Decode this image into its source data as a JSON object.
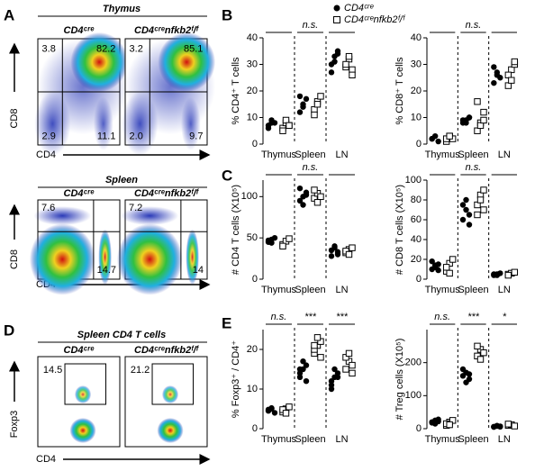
{
  "panel_labels": [
    "A",
    "B",
    "C",
    "D",
    "E"
  ],
  "flow_sections": [
    {
      "title": "Thymus",
      "headers": [
        "CD4ᶜʳᵉ",
        "CD4ᶜʳᵉnfkb2ᶠ/ᶠ"
      ],
      "y_axis": "CD8",
      "x_axis": "CD4",
      "gates": [
        [
          "3.8",
          "82.2",
          "2.9",
          "11.1"
        ],
        [
          "3.2",
          "85.1",
          "2.0",
          "9.7"
        ]
      ]
    },
    {
      "title": "Spleen",
      "headers": [
        "CD4ᶜʳᵉ",
        "CD4ᶜʳᵉnfkb2ᶠ/ᶠ"
      ],
      "y_axis": "CD8",
      "x_axis": "CD4",
      "gates": [
        [
          "7.6",
          "14.7"
        ],
        [
          "7.2",
          "14"
        ]
      ]
    },
    {
      "title": "Spleen CD4 T cells",
      "headers": [
        "CD4ᶜʳᵉ",
        "CD4ᶜʳᵉnfkb2ᶠ/ᶠ"
      ],
      "y_axis": "Foxp3",
      "x_axis": "CD4",
      "gates": [
        [
          "14.5"
        ],
        [
          "21.2"
        ]
      ]
    }
  ],
  "chart_data": [
    {
      "type": "dot",
      "ylabel": "% CD4⁺ T cells",
      "categories": [
        "Thymus",
        "Spleen",
        "LN"
      ],
      "ylim": [
        0,
        40
      ],
      "yticks": [
        0,
        10,
        20,
        30,
        40
      ],
      "significance": [
        null,
        "n.s.",
        null
      ],
      "series": [
        {
          "name": "CD4ᶜʳᵉ",
          "color": "#000000",
          "marker": "circle",
          "values": [
            [
              7,
              9,
              8,
              6,
              8
            ],
            [
              12,
              15,
              17,
              18,
              14
            ],
            [
              30,
              33,
              35,
              27,
              31,
              34
            ]
          ]
        },
        {
          "name": "CD4ᶜʳᵉnfkb2ᶠ/ᶠ",
          "color": "#000000",
          "marker": "square",
          "values": [
            [
              6,
              8,
              7,
              5,
              9,
              7
            ],
            [
              13,
              16,
              18,
              11,
              15
            ],
            [
              29,
              32,
              28,
              30,
              33,
              26
            ]
          ]
        }
      ]
    },
    {
      "type": "dot",
      "ylabel": "% CD8⁺ T cells",
      "categories": [
        "Thymus",
        "Spleen",
        "LN"
      ],
      "ylim": [
        0,
        40
      ],
      "yticks": [
        0,
        10,
        20,
        30,
        40
      ],
      "significance": [
        null,
        "n.s.",
        null
      ],
      "series": [
        {
          "name": "CD4ᶜʳᵉ",
          "color": "#000000",
          "marker": "circle",
          "values": [
            [
              2,
              3,
              1,
              2
            ],
            [
              8,
              9,
              10,
              9,
              8,
              10
            ],
            [
              23,
              27,
              25,
              29,
              26
            ]
          ]
        },
        {
          "name": "CD4ᶜʳᵉnfkb2ᶠ/ᶠ",
          "color": "#000000",
          "marker": "square",
          "values": [
            [
              1,
              3,
              2,
              2,
              3
            ],
            [
              5,
              8,
              12,
              16,
              7,
              9
            ],
            [
              22,
              28,
              30,
              26,
              24,
              31
            ]
          ]
        }
      ]
    },
    {
      "type": "dot",
      "ylabel": "# CD4 T cells (X10⁵)",
      "categories": [
        "Thymus",
        "Spleen",
        "LN"
      ],
      "ylim": [
        0,
        120
      ],
      "yticks": [
        0,
        50,
        100
      ],
      "significance": [
        null,
        "n.s.",
        null
      ],
      "series": [
        {
          "name": "CD4ᶜʳᵉ",
          "color": "#000000",
          "marker": "circle",
          "values": [
            [
              45,
              48,
              50,
              47,
              44
            ],
            [
              95,
              100,
              105,
              110,
              90,
              102
            ],
            [
              35,
              40,
              30,
              28,
              38,
              33
            ]
          ]
        },
        {
          "name": "CD4ᶜʳᵉnfkb2ᶠ/ᶠ",
          "color": "#000000",
          "marker": "square",
          "values": [
            [
              42,
              46,
              49,
              40
            ],
            [
              98,
              104,
              100,
              108,
              93
            ],
            [
              32,
              36,
              38,
              34,
              30
            ]
          ]
        }
      ]
    },
    {
      "type": "dot",
      "ylabel": "# CD8 T cells (X10⁵)",
      "categories": [
        "Thymus",
        "Spleen",
        "LN"
      ],
      "ylim": [
        0,
        100
      ],
      "yticks": [
        0,
        20,
        40,
        60,
        80,
        100
      ],
      "significance": [
        null,
        "n.s.",
        null
      ],
      "series": [
        {
          "name": "CD4ᶜʳᵉ",
          "color": "#000000",
          "marker": "circle",
          "values": [
            [
              10,
              12,
              15,
              18,
              14,
              9
            ],
            [
              60,
              70,
              65,
              75,
              80,
              55
            ],
            [
              4,
              5,
              6,
              5,
              4
            ]
          ]
        },
        {
          "name": "CD4ᶜʳᵉnfkb2ᶠ/ᶠ",
          "color": "#000000",
          "marker": "square",
          "values": [
            [
              8,
              16,
              20,
              12,
              6
            ],
            [
              65,
              85,
              90,
              75,
              80,
              70
            ],
            [
              5,
              6,
              7,
              4
            ]
          ]
        }
      ]
    },
    {
      "type": "dot",
      "ylabel": "% Foxp3⁺ / CD4⁺",
      "categories": [
        "Thymus",
        "Spleen",
        "LN"
      ],
      "ylim": [
        0,
        25
      ],
      "yticks": [
        0,
        10,
        20
      ],
      "significance": [
        "n.s.",
        "***",
        "***"
      ],
      "series": [
        {
          "name": "CD4ᶜʳᵉ",
          "color": "#000000",
          "marker": "circle",
          "values": [
            [
              4.5,
              5,
              4,
              4.8,
              5.2
            ],
            [
              13,
              15,
              16,
              14,
              17,
              12,
              15
            ],
            [
              12,
              13,
              14,
              11,
              15,
              13,
              10
            ]
          ]
        },
        {
          "name": "CD4ᶜʳᵉnfkb2ᶠ/ᶠ",
          "color": "#000000",
          "marker": "square",
          "values": [
            [
              4.2,
              5,
              5.5,
              4.8,
              3.9
            ],
            [
              19,
              21,
              22,
              20,
              23,
              18,
              21
            ],
            [
              15,
              17,
              16,
              18,
              19,
              14
            ]
          ]
        }
      ]
    },
    {
      "type": "dot",
      "ylabel": "# Treg cells (X10⁵)",
      "categories": [
        "Thymus",
        "Spleen",
        "LN"
      ],
      "ylim": [
        0,
        300
      ],
      "yticks": [
        0,
        100,
        200
      ],
      "significance": [
        "n.s.",
        "***",
        "*"
      ],
      "series": [
        {
          "name": "CD4ᶜʳᵉ",
          "color": "#000000",
          "marker": "circle",
          "values": [
            [
              20,
              25,
              22,
              18,
              15,
              28
            ],
            [
              160,
              170,
              150,
              180,
              140,
              165
            ],
            [
              6,
              8,
              7,
              5,
              9,
              6
            ]
          ]
        },
        {
          "name": "CD4ᶜʳᵉnfkb2ᶠ/ᶠ",
          "color": "#000000",
          "marker": "square",
          "values": [
            [
              10,
              20,
              25,
              15,
              12
            ],
            [
              220,
              240,
              230,
              250,
              210
            ],
            [
              10,
              12,
              8,
              14
            ]
          ]
        }
      ]
    }
  ]
}
